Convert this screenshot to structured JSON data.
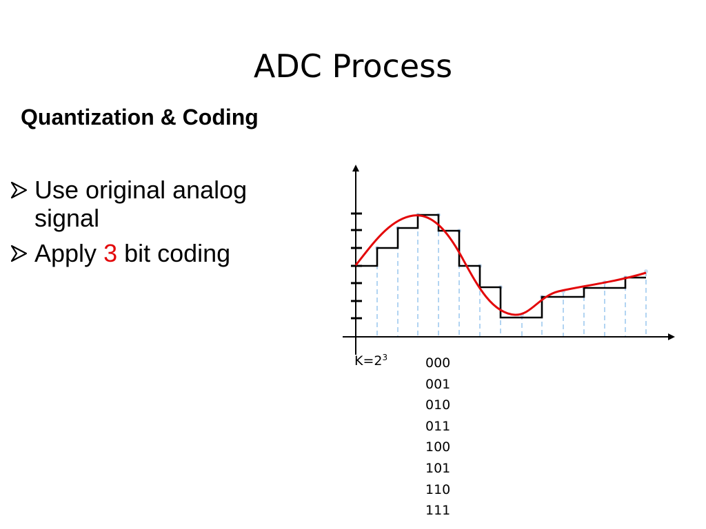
{
  "slide": {
    "title": "ADC Process",
    "subtitle": "Quantization & Coding"
  },
  "bullets": [
    {
      "prefix": "Use original analog signal",
      "highlight": "",
      "suffix": ""
    },
    {
      "prefix": "Apply ",
      "highlight": "3",
      "suffix": " bit coding"
    }
  ],
  "diagram": {
    "k_label_base": "K=2",
    "k_label_exponent": "3",
    "codes": [
      "000",
      "001",
      "010",
      "011",
      "100",
      "101",
      "110",
      "111"
    ],
    "colors": {
      "analog_signal": "#e3080a",
      "quantized_signal": "#000000",
      "sample_lines": "#9ec9ee",
      "sample_points": "#c6dcf2",
      "highlight_text": "#e3080a"
    }
  }
}
